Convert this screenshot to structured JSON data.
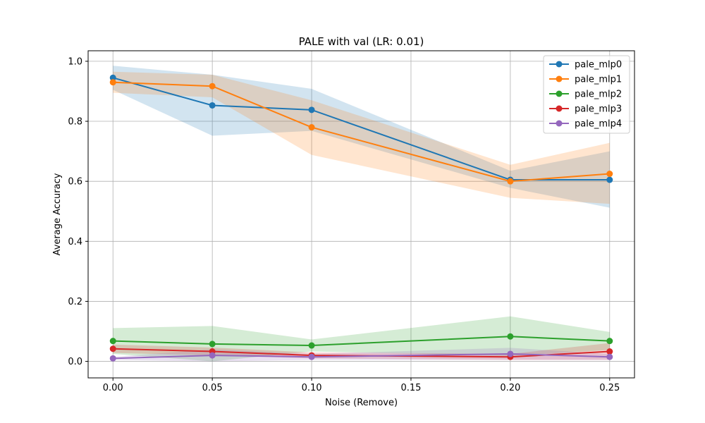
{
  "chart_data": {
    "type": "line",
    "title": "PALE with val (LR: 0.01)",
    "xlabel": "Noise (Remove)",
    "ylabel": "Average Accuracy",
    "x": [
      0.0,
      0.05,
      0.1,
      0.2,
      0.25
    ],
    "xticks": [
      0.0,
      0.05,
      0.1,
      0.15,
      0.2,
      0.25
    ],
    "xtick_labels": [
      "0.00",
      "0.05",
      "0.10",
      "0.15",
      "0.20",
      "0.25"
    ],
    "yticks": [
      0.0,
      0.2,
      0.4,
      0.6,
      0.8,
      1.0
    ],
    "ytick_labels": [
      "0.0",
      "0.2",
      "0.4",
      "0.6",
      "0.8",
      "1.0"
    ],
    "xlim": [
      -0.0125,
      0.2625
    ],
    "ylim": [
      -0.055,
      1.035
    ],
    "grid": true,
    "legend_position": "top-right",
    "series": [
      {
        "name": "pale_mlp0",
        "color": "#1f77b4",
        "values": [
          0.945,
          0.853,
          0.838,
          0.605,
          0.605
        ],
        "lower": [
          0.905,
          0.752,
          0.768,
          0.578,
          0.512
        ],
        "upper": [
          0.985,
          0.955,
          0.908,
          0.635,
          0.7
        ]
      },
      {
        "name": "pale_mlp1",
        "color": "#ff7f0e",
        "values": [
          0.93,
          0.917,
          0.78,
          0.6,
          0.625
        ],
        "lower": [
          0.895,
          0.88,
          0.688,
          0.545,
          0.525
        ],
        "upper": [
          0.965,
          0.955,
          0.87,
          0.655,
          0.728
        ]
      },
      {
        "name": "pale_mlp2",
        "color": "#2ca02c",
        "values": [
          0.068,
          0.058,
          0.053,
          0.083,
          0.068
        ],
        "lower": [
          0.025,
          0.0,
          0.033,
          0.018,
          0.038
        ],
        "upper": [
          0.111,
          0.118,
          0.073,
          0.15,
          0.098
        ]
      },
      {
        "name": "pale_mlp3",
        "color": "#d62728",
        "values": [
          0.042,
          0.033,
          0.02,
          0.015,
          0.033
        ],
        "lower": [
          0.028,
          0.02,
          0.01,
          0.005,
          0.005
        ],
        "upper": [
          0.056,
          0.046,
          0.03,
          0.025,
          0.061
        ]
      },
      {
        "name": "pale_mlp4",
        "color": "#9467bd",
        "values": [
          0.01,
          0.02,
          0.015,
          0.025,
          0.015
        ],
        "lower": [
          0.005,
          0.0,
          0.005,
          0.005,
          0.005
        ],
        "upper": [
          0.015,
          0.04,
          0.025,
          0.045,
          0.025
        ]
      }
    ]
  }
}
